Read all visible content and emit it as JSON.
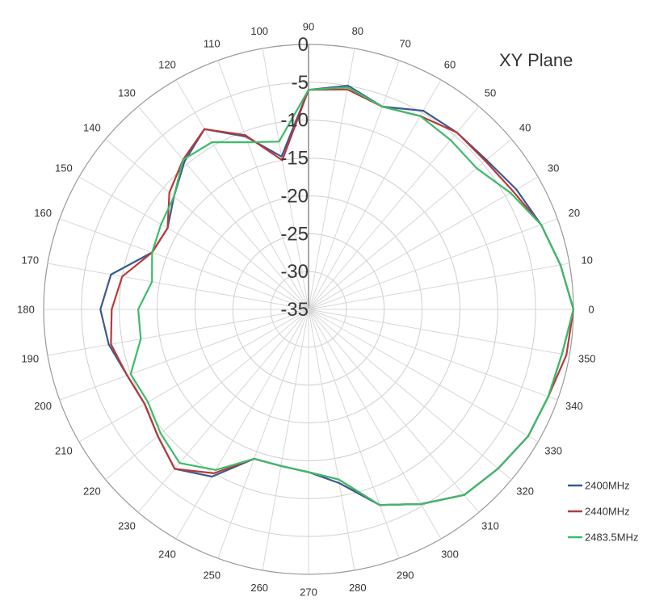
{
  "chart_data": {
    "type": "polar-line",
    "title": "XY Plane",
    "angle_unit": "deg",
    "angle_ticks": [
      0,
      10,
      20,
      30,
      40,
      50,
      60,
      70,
      80,
      90,
      100,
      110,
      120,
      130,
      140,
      150,
      160,
      170,
      180,
      190,
      200,
      210,
      220,
      230,
      240,
      250,
      260,
      270,
      280,
      290,
      300,
      310,
      320,
      330,
      340,
      350
    ],
    "radial_ticks": [
      0,
      -5,
      -10,
      -15,
      -20,
      -25,
      -30,
      -35
    ],
    "radial_range": [
      -35,
      0
    ],
    "grid": true,
    "legend_position": "bottom-right",
    "colors": {
      "grid": "#cfcfcf",
      "axis": "#9a9a9a",
      "spoke": "#d7d7d7"
    },
    "series": [
      {
        "name": "2400MHz",
        "color": "#3a5a8f",
        "angles": [
          0,
          10,
          20,
          30,
          40,
          50,
          60,
          70,
          80,
          90,
          100,
          110,
          120,
          130,
          140,
          150,
          160,
          170,
          180,
          190,
          200,
          210,
          220,
          230,
          240,
          250,
          260,
          270,
          280,
          290,
          300,
          310,
          320,
          330,
          340,
          350
        ],
        "values": [
          0,
          -1.2,
          -2.3,
          -3.3,
          -4.3,
          -4.5,
          -4.7,
          -6.5,
          -5,
          -6,
          -14.5,
          -10.7,
          -7.5,
          -9.5,
          -11.8,
          -13.5,
          -13,
          -8.5,
          -7.5,
          -8.2,
          -9.5,
          -10,
          -9,
          -7.5,
          -9.5,
          -14,
          -14,
          -13.5,
          -11.7,
          -7.5,
          -5.3,
          -3,
          -2.3,
          -1.5,
          -1.3,
          -1
        ]
      },
      {
        "name": "2440MHz",
        "color": "#b83a3a",
        "angles": [
          0,
          10,
          20,
          30,
          40,
          50,
          60,
          70,
          80,
          90,
          100,
          110,
          120,
          130,
          140,
          150,
          160,
          170,
          180,
          190,
          200,
          210,
          220,
          230,
          240,
          250,
          260,
          270,
          280,
          290,
          300,
          310,
          320,
          330,
          340,
          350
        ],
        "values": [
          0,
          -1.2,
          -2.3,
          -3.8,
          -4.5,
          -4.5,
          -5.5,
          -6.5,
          -5.5,
          -6,
          -15,
          -10.5,
          -7.5,
          -9.2,
          -11,
          -13.5,
          -13,
          -10,
          -9,
          -8.5,
          -9.5,
          -10,
          -9,
          -7.5,
          -10,
          -14,
          -14,
          -13.5,
          -12.2,
          -7.5,
          -5.3,
          -3,
          -2.3,
          -1.5,
          -1.3,
          -0.4
        ]
      },
      {
        "name": "2483.5MHz",
        "color": "#3dbb6a",
        "angles": [
          0,
          10,
          20,
          30,
          40,
          50,
          60,
          70,
          80,
          90,
          100,
          110,
          120,
          130,
          140,
          150,
          160,
          170,
          180,
          190,
          200,
          210,
          220,
          230,
          240,
          250,
          260,
          270,
          280,
          290,
          300,
          310,
          320,
          330,
          340,
          350
        ],
        "values": [
          0,
          -1.2,
          -2.3,
          -4.2,
          -6,
          -5.8,
          -5.5,
          -6.5,
          -5.2,
          -6,
          -12.5,
          -11.5,
          -9.5,
          -9.2,
          -11.8,
          -12.5,
          -13,
          -14,
          -12.5,
          -12.5,
          -10,
          -10.5,
          -9.5,
          -8.5,
          -10.5,
          -14,
          -14,
          -13.5,
          -12.2,
          -7.5,
          -5.3,
          -3,
          -2.3,
          -1.5,
          -1.3,
          -1
        ]
      }
    ]
  }
}
